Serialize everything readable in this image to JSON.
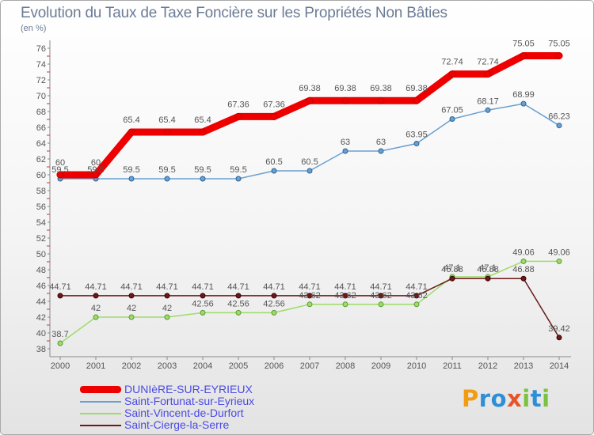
{
  "chart_data": {
    "type": "line",
    "title": "Evolution du Taux de Taxe Foncière sur les Propriétés Non Bâties",
    "ylabel": "(en %)",
    "xlabel": "",
    "x": [
      2000,
      2001,
      2002,
      2003,
      2004,
      2005,
      2006,
      2007,
      2008,
      2009,
      2010,
      2011,
      2012,
      2013,
      2014
    ],
    "ylim": [
      38,
      76
    ],
    "ytick_step": 2,
    "grid": false,
    "legend_position": "bottom-left",
    "series": [
      {
        "name": "DUNIèRE-SUR-EYRIEUX",
        "color": "#ee0000",
        "values": [
          60,
          60,
          65.4,
          65.4,
          65.4,
          67.36,
          67.36,
          69.38,
          69.38,
          69.38,
          69.38,
          72.74,
          72.74,
          75.05,
          75.05
        ]
      },
      {
        "name": "Saint-Fortunat-sur-Eyrieux",
        "color": "#6b9fd0",
        "values": [
          59.5,
          59.5,
          59.5,
          59.5,
          59.5,
          59.5,
          60.5,
          60.5,
          63,
          63,
          63.95,
          67.05,
          68.17,
          68.99,
          66.23
        ]
      },
      {
        "name": "Saint-Vincent-de-Durfort",
        "color": "#9ddc6a",
        "values": [
          38.7,
          42,
          42,
          42,
          42.56,
          42.56,
          42.56,
          43.62,
          43.62,
          43.62,
          43.62,
          47.1,
          47.1,
          49.06,
          49.06
        ]
      },
      {
        "name": "Saint-Cierge-la-Serre",
        "color": "#6b1a1a",
        "values": [
          44.71,
          44.71,
          44.71,
          44.71,
          44.71,
          44.71,
          44.71,
          44.71,
          44.71,
          44.71,
          44.71,
          46.88,
          46.88,
          46.88,
          39.42
        ]
      }
    ]
  },
  "logo": {
    "text": "Proxiti",
    "colors": [
      "#f39c12",
      "#2f8fd6",
      "#2f8fd6",
      "#e8542a",
      "#7cc242",
      "#2f8fd6",
      "#7cc242"
    ]
  }
}
